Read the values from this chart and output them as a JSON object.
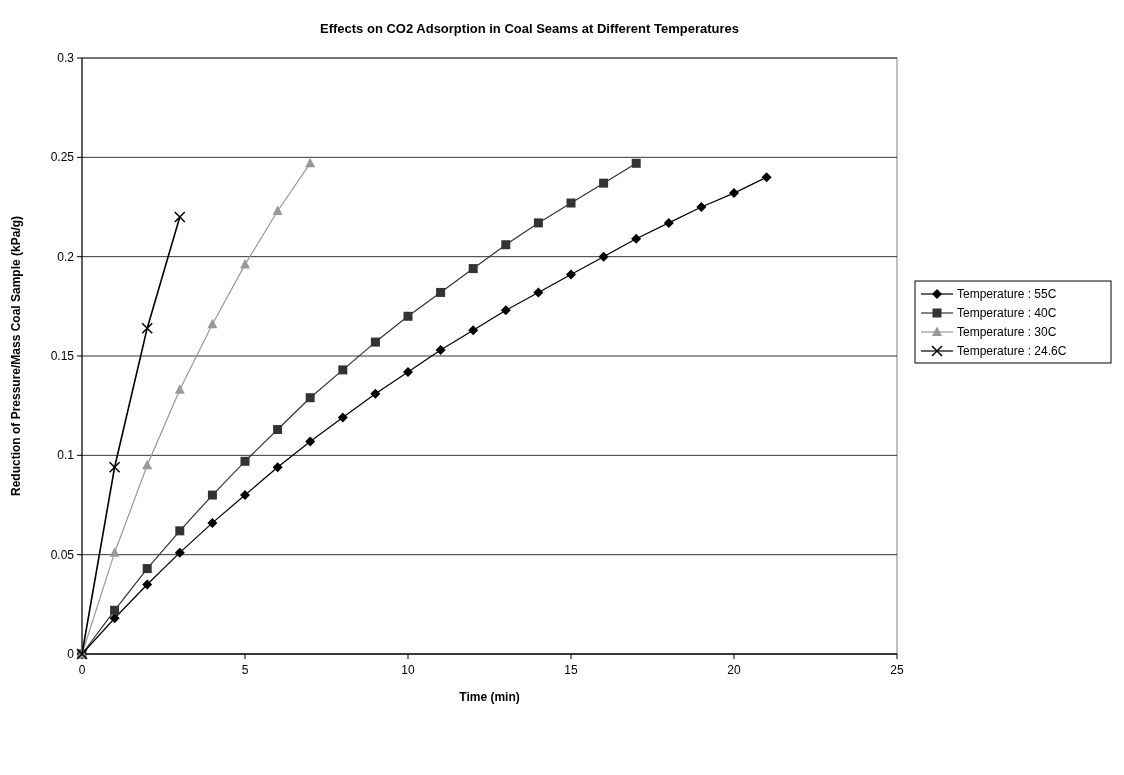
{
  "chart_data": {
    "type": "line",
    "title": "Effects on CO2 Adsorption in Coal Seams at Different Temperatures",
    "xlabel": "Time (min)",
    "ylabel": "Reduction of Pressure/Mass Coal Sample (kPa/g)",
    "xlim": [
      0,
      25
    ],
    "xticks": [
      0,
      5,
      10,
      15,
      20,
      25
    ],
    "ylim": [
      0,
      0.3
    ],
    "yticks": [
      0,
      0.05,
      0.1,
      0.15,
      0.2,
      0.25,
      0.3
    ],
    "grid": "y",
    "legend": "right",
    "series": [
      {
        "name": "Temperature : 55C",
        "color": "#000000",
        "marker": "diamond",
        "x": [
          0,
          1,
          2,
          3,
          4,
          5,
          6,
          7,
          8,
          9,
          10,
          11,
          12,
          13,
          14,
          15,
          16,
          17,
          18,
          19,
          20,
          21
        ],
        "values": [
          0,
          0.018,
          0.035,
          0.051,
          0.066,
          0.08,
          0.094,
          0.107,
          0.119,
          0.131,
          0.142,
          0.153,
          0.163,
          0.173,
          0.182,
          0.191,
          0.2,
          0.209,
          0.217,
          0.225,
          0.232,
          0.24
        ]
      },
      {
        "name": "Temperature : 40C",
        "color": "#333333",
        "marker": "square",
        "x": [
          0,
          1,
          2,
          3,
          4,
          5,
          6,
          7,
          8,
          9,
          10,
          11,
          12,
          13,
          14,
          15,
          16,
          17
        ],
        "values": [
          0,
          0.022,
          0.043,
          0.062,
          0.08,
          0.097,
          0.113,
          0.129,
          0.143,
          0.157,
          0.17,
          0.182,
          0.194,
          0.206,
          0.217,
          0.227,
          0.237,
          0.247
        ]
      },
      {
        "name": "Temperature : 30C",
        "color": "#999999",
        "marker": "triangle",
        "x": [
          0,
          1,
          2,
          3,
          4,
          5,
          6,
          7
        ],
        "values": [
          0,
          0.051,
          0.095,
          0.133,
          0.166,
          0.196,
          0.223,
          0.247
        ]
      },
      {
        "name": "Temperature : 24.6C",
        "color": "#000000",
        "marker": "cross",
        "x": [
          0,
          1,
          2,
          3
        ],
        "values": [
          0,
          0.094,
          0.164,
          0.22
        ]
      }
    ]
  }
}
